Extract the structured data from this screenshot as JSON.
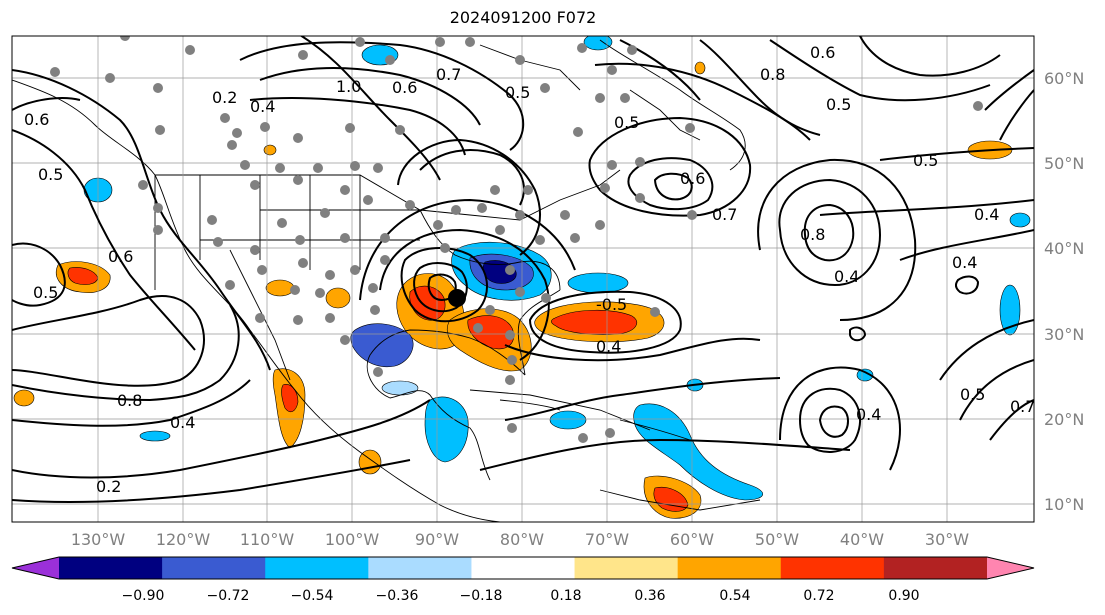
{
  "title": "2024091200 F072",
  "map": {
    "lon_labels": [
      "130°W",
      "120°W",
      "110°W",
      "100°W",
      "90°W",
      "80°W",
      "70°W",
      "60°W",
      "50°W",
      "40°W",
      "30°W"
    ],
    "lat_labels": [
      "60°N",
      "50°N",
      "40°N",
      "30°N",
      "20°N",
      "10°N"
    ],
    "contour_labels": [
      "1.0",
      "0.7",
      "0.6",
      "0.5",
      "0.2",
      "0.4",
      "0.8",
      "0.6",
      "0.5",
      "0.5",
      "0.6",
      "0.4",
      "0.5",
      "0.4",
      "0.6",
      "0.7",
      "0.8",
      "0.4",
      "0.5",
      "0.6",
      "0.8",
      "0.4",
      "0.2",
      "0.4",
      "0.5",
      "-0.5",
      "0.5",
      "0.4",
      "0.7"
    ],
    "colors": {
      "land_line": "#000000",
      "grid": "#808080",
      "station": "#808080",
      "center_marker": "#000000"
    }
  },
  "colorbar": {
    "ticks": [
      "−0.90",
      "−0.72",
      "−0.54",
      "−0.36",
      "−0.18",
      "0.18",
      "0.36",
      "0.54",
      "0.72",
      "0.90"
    ],
    "colors": [
      "#9b30d9",
      "#000080",
      "#3a5bd1",
      "#00bfff",
      "#aadcff",
      "#ffffff",
      "#ffe58a",
      "#ffa500",
      "#ff3300",
      "#b22222",
      "#ff85b0"
    ]
  }
}
